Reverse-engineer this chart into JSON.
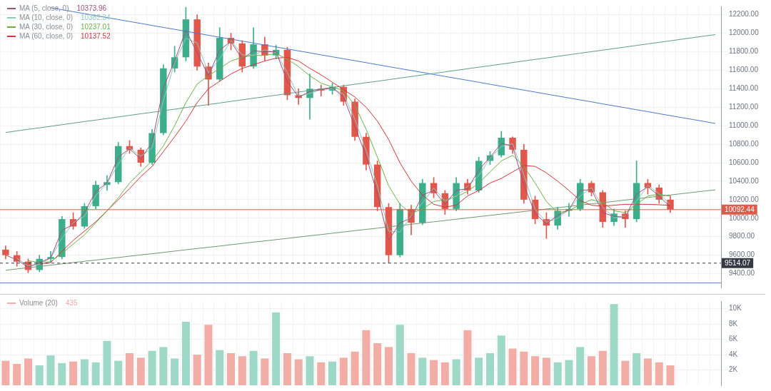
{
  "chart_data": [
    {
      "type": "candlestick",
      "categories": [
        null,
        null,
        null,
        null,
        null,
        null,
        null,
        null,
        null,
        null,
        null,
        null,
        null,
        null,
        null,
        null,
        null,
        null,
        null,
        null,
        null,
        null,
        null,
        null,
        null,
        null,
        null,
        null,
        null,
        null,
        null,
        null,
        null,
        null,
        null,
        null,
        null,
        null,
        null,
        null,
        null,
        null,
        null,
        null,
        null,
        null,
        null,
        null,
        null,
        null,
        null,
        null,
        null,
        null,
        null,
        null,
        null,
        null,
        null,
        null,
        null,
        null,
        null,
        null
      ],
      "ohlc": [
        [
          9660,
          9700,
          9560,
          9600
        ],
        [
          9600,
          9640,
          9480,
          9530
        ],
        [
          9530,
          9560,
          9410,
          9440
        ],
        [
          9440,
          9600,
          9420,
          9560
        ],
        [
          9560,
          9640,
          9520,
          9580
        ],
        [
          9580,
          10020,
          9560,
          9990
        ],
        [
          9990,
          10060,
          9880,
          9910
        ],
        [
          9910,
          10160,
          9890,
          10130
        ],
        [
          10130,
          10400,
          10100,
          10360
        ],
        [
          10360,
          10460,
          10300,
          10390
        ],
        [
          10390,
          10820,
          10370,
          10780
        ],
        [
          10780,
          10840,
          10700,
          10740
        ],
        [
          10740,
          10760,
          10560,
          10600
        ],
        [
          10600,
          10960,
          10580,
          10920
        ],
        [
          10920,
          11660,
          10900,
          11620
        ],
        [
          11620,
          11860,
          11580,
          11740
        ],
        [
          11740,
          12280,
          11700,
          12150
        ],
        [
          12150,
          12200,
          11600,
          11640
        ],
        [
          11640,
          11680,
          11220,
          11500
        ],
        [
          11500,
          12060,
          11480,
          11950
        ],
        [
          11950,
          12000,
          11820,
          11890
        ],
        [
          11890,
          11920,
          11580,
          11640
        ],
        [
          11640,
          12060,
          11620,
          11880
        ],
        [
          11880,
          11960,
          11700,
          11760
        ],
        [
          11760,
          11870,
          11720,
          11820
        ],
        [
          11820,
          11850,
          11280,
          11330
        ],
        [
          11330,
          11400,
          11230,
          11300
        ],
        [
          11300,
          11560,
          11070,
          11400
        ],
        [
          11400,
          11440,
          11320,
          11380
        ],
        [
          11380,
          11460,
          11340,
          11420
        ],
        [
          11420,
          11440,
          11220,
          11260
        ],
        [
          11260,
          11290,
          10840,
          10880
        ],
        [
          10880,
          10920,
          10520,
          10580
        ],
        [
          10580,
          10620,
          10080,
          10120
        ],
        [
          10120,
          10160,
          9514,
          9600
        ],
        [
          9600,
          10160,
          9580,
          10100
        ],
        [
          10100,
          10140,
          9820,
          9950
        ],
        [
          9950,
          10420,
          9930,
          10380
        ],
        [
          10380,
          10440,
          10220,
          10270
        ],
        [
          10270,
          10300,
          10040,
          10100
        ],
        [
          10100,
          10440,
          10080,
          10380
        ],
        [
          10380,
          10420,
          10260,
          10300
        ],
        [
          10300,
          10660,
          10280,
          10620
        ],
        [
          10620,
          10720,
          10580,
          10680
        ],
        [
          10680,
          10940,
          10660,
          10870
        ],
        [
          10870,
          10880,
          10700,
          10740
        ],
        [
          10740,
          10800,
          10160,
          10200
        ],
        [
          10200,
          10240,
          9940,
          9990
        ],
        [
          9990,
          10060,
          9780,
          9920
        ],
        [
          9920,
          10120,
          9880,
          10080
        ],
        [
          10080,
          10160,
          10020,
          10100
        ],
        [
          10100,
          10420,
          10080,
          10380
        ],
        [
          10380,
          10400,
          10240,
          10280
        ],
        [
          10280,
          10300,
          9900,
          9960
        ],
        [
          9960,
          10100,
          9920,
          10050
        ],
        [
          10050,
          10080,
          9900,
          9990
        ],
        [
          9990,
          10620,
          9960,
          10380
        ],
        [
          10380,
          10420,
          10260,
          10330
        ],
        [
          10330,
          10360,
          10160,
          10200
        ],
        [
          10200,
          10240,
          10060,
          10092.44
        ],
        null,
        null,
        null,
        null
      ],
      "colors": [
        "#e2574c",
        "#e2574c",
        "#e2574c",
        "#3dae8c",
        "#3dae8c",
        "#3dae8c",
        "#e2574c",
        "#3dae8c",
        "#3dae8c",
        "#3dae8c",
        "#3dae8c",
        "#e2574c",
        "#e2574c",
        "#3dae8c",
        "#3dae8c",
        "#3dae8c",
        "#3dae8c",
        "#e2574c",
        "#e2574c",
        "#3dae8c",
        "#e2574c",
        "#e2574c",
        "#3dae8c",
        "#e2574c",
        "#3dae8c",
        "#e2574c",
        "#e2574c",
        "#3dae8c",
        "#e2574c",
        "#3dae8c",
        "#e2574c",
        "#e2574c",
        "#e2574c",
        "#e2574c",
        "#e2574c",
        "#3dae8c",
        "#e2574c",
        "#3dae8c",
        "#e2574c",
        "#e2574c",
        "#3dae8c",
        "#e2574c",
        "#3dae8c",
        "#3dae8c",
        "#3dae8c",
        "#e2574c",
        "#e2574c",
        "#e2574c",
        "#e2574c",
        "#3dae8c",
        "#3dae8c",
        "#3dae8c",
        "#e2574c",
        "#e2574c",
        "#3dae8c",
        "#e2574c",
        "#3dae8c",
        "#e2574c",
        "#e2574c",
        "#e2574c",
        null,
        null,
        null,
        null
      ],
      "series": [
        {
          "name": "MA (5, close, 0)",
          "type": "line",
          "color": "#a0507a",
          "values": [
            9600,
            9550,
            9470,
            9520,
            9570,
            9870,
            9930,
            10060,
            10290,
            10380,
            10660,
            10750,
            10640,
            10820,
            11410,
            11700,
            12030,
            11790,
            11540,
            11820,
            11910,
            11720,
            11810,
            11800,
            11800,
            11480,
            11310,
            11370,
            11390,
            11410,
            11310,
            10990,
            10670,
            10260,
            9760,
            9950,
            10000,
            10250,
            10300,
            10150,
            10300,
            10320,
            10520,
            10660,
            10810,
            10780,
            10360,
            10050,
            9940,
            10030,
            10090,
            10300,
            10310,
            10060,
            10020,
            10010,
            10260,
            10340,
            10240,
            10120,
            null,
            null,
            null,
            null
          ]
        },
        {
          "name": "MA (10, close, 0)",
          "type": "line",
          "color": "#8cc7bb",
          "values": [
            null,
            9565,
            9485,
            9500,
            9570,
            9785,
            9950,
            10020,
            10245,
            10375,
            10585,
            10760,
            10670,
            10760,
            11270,
            11680,
            11945,
            11895,
            11570,
            11725,
            11920,
            11765,
            11760,
            11820,
            11790,
            11575,
            11315,
            11350,
            11390,
            11400,
            11340,
            11070,
            10730,
            10350,
            9860,
            9850,
            10025,
            10165,
            10325,
            10185,
            10240,
            10340,
            10460,
            10650,
            10775,
            10805,
            10470,
            10095,
            9955,
            10000,
            10090,
            10240,
            10330,
            10120,
            10005,
            10020,
            10185,
            10355,
            10265,
            10146,
            null,
            null,
            null,
            null
          ]
        },
        {
          "name": "MA (30, close, 0)",
          "type": "line",
          "color": "#6cb04a",
          "values": [
            null,
            null,
            9540,
            9520,
            9530,
            9620,
            9720,
            9820,
            9950,
            10080,
            10220,
            10380,
            10500,
            10620,
            10780,
            11000,
            11250,
            11450,
            11540,
            11620,
            11700,
            11740,
            11760,
            11760,
            11780,
            11720,
            11640,
            11540,
            11460,
            11420,
            11380,
            11220,
            10960,
            10660,
            10350,
            10150,
            10050,
            10100,
            10180,
            10200,
            10230,
            10290,
            10380,
            10500,
            10620,
            10680,
            10560,
            10380,
            10180,
            10060,
            10080,
            10150,
            10200,
            10170,
            10080,
            10060,
            10150,
            10240,
            10260,
            10237,
            null,
            null,
            null,
            null
          ]
        },
        {
          "name": "MA (60, close, 0)",
          "type": "line",
          "color": "#d2343a",
          "values": [
            null,
            null,
            null,
            9500,
            9520,
            9640,
            9760,
            9860,
            9960,
            10080,
            10200,
            10320,
            10450,
            10560,
            10720,
            10880,
            11050,
            11250,
            11400,
            11480,
            11560,
            11620,
            11660,
            11700,
            11730,
            11740,
            11700,
            11620,
            11550,
            11470,
            11390,
            11310,
            11200,
            11050,
            10850,
            10600,
            10400,
            10250,
            10150,
            10120,
            10140,
            10240,
            10300,
            10380,
            10430,
            10500,
            10570,
            10560,
            10490,
            10400,
            10300,
            10190,
            10140,
            10130,
            10140,
            10150,
            10150,
            10150,
            10145,
            10138,
            null,
            null,
            null,
            null
          ]
        },
        {
          "type": "line",
          "color": "#4a78c8",
          "values": [
            null,
            null,
            null,
            null,
            12275,
            12254,
            12233,
            12212,
            12190,
            12169,
            12148,
            12127,
            12106,
            12084,
            12063,
            12042,
            12021,
            12000,
            11978,
            11957,
            11936,
            11915,
            11894,
            11872,
            11851,
            11830,
            11809,
            11788,
            11766,
            11745,
            11724,
            11703,
            11682,
            11660,
            11639,
            11618,
            11597,
            11576,
            11554,
            11533,
            11512,
            11491,
            11470,
            11448,
            11427,
            11406,
            11385,
            11364,
            11342,
            11321,
            11300,
            11279,
            11258,
            11236,
            11215,
            11194,
            11173,
            11152,
            11130,
            11109,
            11088,
            11067,
            11046,
            11024
          ]
        },
        {
          "type": "line",
          "color": "#5f9a8a",
          "values": [
            10927,
            10944,
            10961,
            10977,
            10994,
            11011,
            11028,
            11045,
            11061,
            11078,
            11095,
            11112,
            11129,
            11145,
            11162,
            11179,
            11196,
            11213,
            11229,
            11246,
            11263,
            11280,
            11297,
            11313,
            11330,
            11347,
            11364,
            11381,
            11397,
            11414,
            11431,
            11448,
            11465,
            11481,
            11498,
            11515,
            11532,
            11549,
            11565,
            11582,
            11599,
            11616,
            11633,
            11649,
            11666,
            11683,
            11700,
            11717,
            11733,
            11750,
            11767,
            11784,
            11801,
            11817,
            11834,
            11851,
            11868,
            11885,
            11901,
            11918,
            11935,
            11952,
            11969,
            11985
          ]
        },
        {
          "type": "line",
          "color": "#6e9a70",
          "values": [
            9437,
            9451,
            9465,
            9478,
            9492,
            9506,
            9520,
            9534,
            9547,
            9561,
            9575,
            9589,
            9603,
            9616,
            9630,
            9644,
            9658,
            9672,
            9685,
            9699,
            9713,
            9727,
            9741,
            9754,
            9768,
            9782,
            9796,
            9810,
            9823,
            9837,
            9851,
            9865,
            9879,
            9892,
            9906,
            9920,
            9934,
            9948,
            9961,
            9975,
            9989,
            10003,
            10017,
            10030,
            10044,
            10058,
            10072,
            10086,
            10099,
            10113,
            10127,
            10141,
            10155,
            10168,
            10182,
            10196,
            10210,
            10224,
            10237,
            10251,
            10265,
            10279,
            10293,
            10306
          ]
        }
      ],
      "annotations": [
        "10373.96",
        "10382.34",
        "10237.01",
        "10137.52"
      ],
      "ref_lines": [
        {
          "axis": "y",
          "value": 10092.44,
          "label": "10092.44",
          "color": "#e05a4a",
          "line_style": "solid"
        },
        {
          "axis": "y",
          "value": 9514.07,
          "label": "9514.07",
          "color": "#363a45",
          "line_style": "dashed"
        },
        {
          "axis": "y",
          "value": 9300,
          "color": "#5b8fc9",
          "line_style": "solid"
        }
      ],
      "ylim": [
        9250,
        12290
      ],
      "yticks": [
        {
          "value": 9400,
          "label": "9400.00"
        },
        {
          "value": 9600,
          "label": "9600.00"
        },
        {
          "value": 9800,
          "label": "9800.00"
        },
        {
          "value": 10000,
          "label": "10000.00"
        },
        {
          "value": 10200,
          "label": "10200.00"
        },
        {
          "value": 10400,
          "label": "10400.00"
        },
        {
          "value": 10600,
          "label": "10600.00"
        },
        {
          "value": 10800,
          "label": "10800.00"
        },
        {
          "value": 11000,
          "label": "11000.00"
        },
        {
          "value": 11200,
          "label": "11200.00"
        },
        {
          "value": 11400,
          "label": "11400.00"
        },
        {
          "value": 11600,
          "label": "11600.00"
        },
        {
          "value": 11800,
          "label": "11800.00"
        },
        {
          "value": 12000,
          "label": "12000.00"
        },
        {
          "value": 12200,
          "label": "12200.00"
        }
      ],
      "tick_labels": "y",
      "grid": true,
      "legend": "top left",
      "marker": "none"
    },
    {
      "type": "bar",
      "categories": [
        null,
        null,
        null,
        null,
        null,
        null,
        null,
        null,
        null,
        null,
        null,
        null,
        null,
        null,
        null,
        null,
        null,
        null,
        null,
        null,
        null,
        null,
        null,
        null,
        null,
        null,
        null,
        null,
        null,
        null,
        null,
        null,
        null,
        null,
        null,
        null,
        null,
        null,
        null,
        null,
        null,
        null,
        null,
        null,
        null,
        null,
        null,
        null,
        null,
        null,
        null,
        null,
        null,
        null,
        null,
        null,
        null,
        null,
        null,
        null,
        null,
        null,
        null,
        null
      ],
      "series": [
        {
          "name": "Volume (20)",
          "values": [
            3200,
            2800,
            3500,
            2600,
            3900,
            2900,
            3100,
            3400,
            3000,
            5800,
            3200,
            4200,
            3600,
            4500,
            5000,
            3500,
            8300,
            4000,
            7900,
            4600,
            4200,
            3800,
            4500,
            3500,
            9500,
            4200,
            3400,
            3800,
            3000,
            3100,
            3600,
            4400,
            7200,
            5500,
            5000,
            7900,
            4200,
            3600,
            3300,
            3000,
            3400,
            7200,
            3600,
            4200,
            6500,
            4800,
            4400,
            3800,
            3600,
            3000,
            3300,
            5000,
            3800,
            4500,
            10600,
            3200,
            4200,
            3500,
            3000,
            2600,
            null,
            null,
            null,
            null
          ],
          "colors": [
            "#f2ada6",
            "#f2ada6",
            "#f2ada6",
            "#9ed8c6",
            "#9ed8c6",
            "#9ed8c6",
            "#f2ada6",
            "#9ed8c6",
            "#9ed8c6",
            "#9ed8c6",
            "#9ed8c6",
            "#f2ada6",
            "#f2ada6",
            "#9ed8c6",
            "#9ed8c6",
            "#9ed8c6",
            "#9ed8c6",
            "#f2ada6",
            "#f2ada6",
            "#9ed8c6",
            "#f2ada6",
            "#f2ada6",
            "#9ed8c6",
            "#f2ada6",
            "#9ed8c6",
            "#f2ada6",
            "#f2ada6",
            "#9ed8c6",
            "#f2ada6",
            "#9ed8c6",
            "#f2ada6",
            "#f2ada6",
            "#f2ada6",
            "#f2ada6",
            "#f2ada6",
            "#9ed8c6",
            "#f2ada6",
            "#9ed8c6",
            "#f2ada6",
            "#f2ada6",
            "#9ed8c6",
            "#f2ada6",
            "#9ed8c6",
            "#9ed8c6",
            "#9ed8c6",
            "#f2ada6",
            "#f2ada6",
            "#f2ada6",
            "#f2ada6",
            "#9ed8c6",
            "#9ed8c6",
            "#9ed8c6",
            "#f2ada6",
            "#f2ada6",
            "#9ed8c6",
            "#f2ada6",
            "#9ed8c6",
            "#f2ada6",
            "#f2ada6",
            "#f2ada6",
            null,
            null,
            null,
            null
          ]
        }
      ],
      "annotations": [
        "435"
      ],
      "ylim": [
        0,
        11000
      ],
      "yticks": [
        {
          "value": 2000,
          "label": "2K"
        },
        {
          "value": 4000,
          "label": "4K"
        },
        {
          "value": 6000,
          "label": "6K"
        },
        {
          "value": 8000,
          "label": "8K"
        },
        {
          "value": 10000,
          "label": "10K"
        }
      ],
      "tick_labels": "y",
      "grid": true,
      "legend": "top left"
    }
  ]
}
